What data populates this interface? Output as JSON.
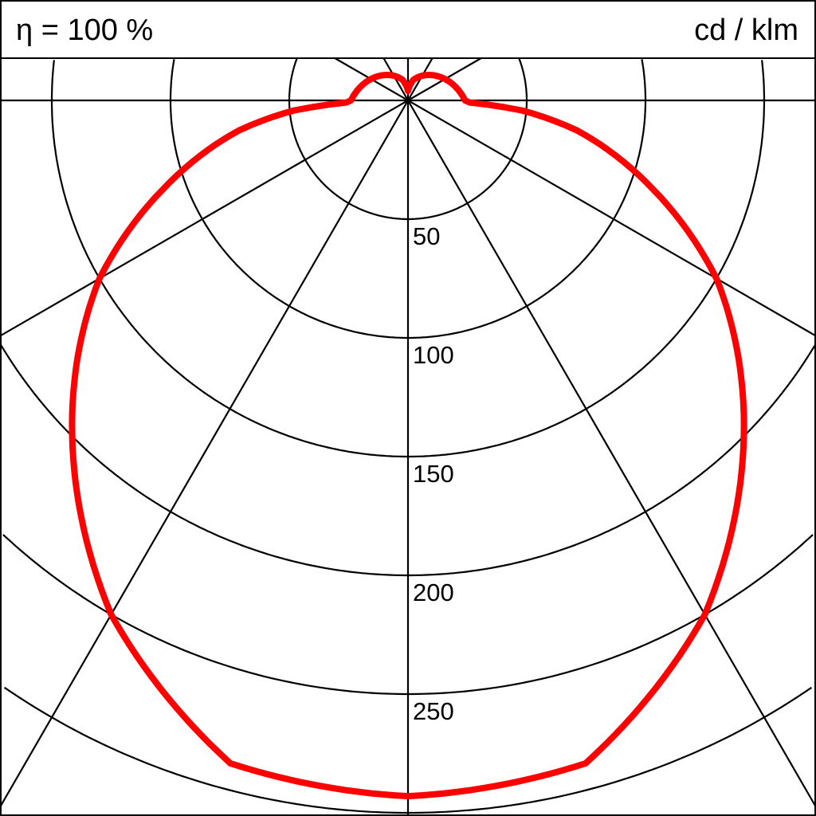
{
  "header": {
    "efficiency_label": "η = 100 %",
    "unit_label": "cd / klm"
  },
  "chart_data": {
    "type": "polar",
    "title": "",
    "unit": "cd / klm",
    "efficiency": "η = 100 %",
    "radial_ticks": [
      50,
      100,
      150,
      200,
      250
    ],
    "radial_tick_labels": [
      "50",
      "100",
      "150",
      "200",
      "250"
    ],
    "radial_grid_max": 300,
    "angular_grid_step_deg": 30,
    "grid": true,
    "symmetric": true,
    "angle_zero": "nadir (down)",
    "series": [
      {
        "color": "#ff0000",
        "angles_deg": [
          0,
          15,
          30,
          45,
          60,
          70,
          80,
          85,
          88,
          90,
          105,
          125,
          145,
          165,
          180
        ],
        "values": [
          293,
          289,
          250,
          200,
          150,
          110,
          72,
          48,
          26,
          24,
          21,
          17,
          13,
          9,
          4
        ]
      }
    ]
  }
}
